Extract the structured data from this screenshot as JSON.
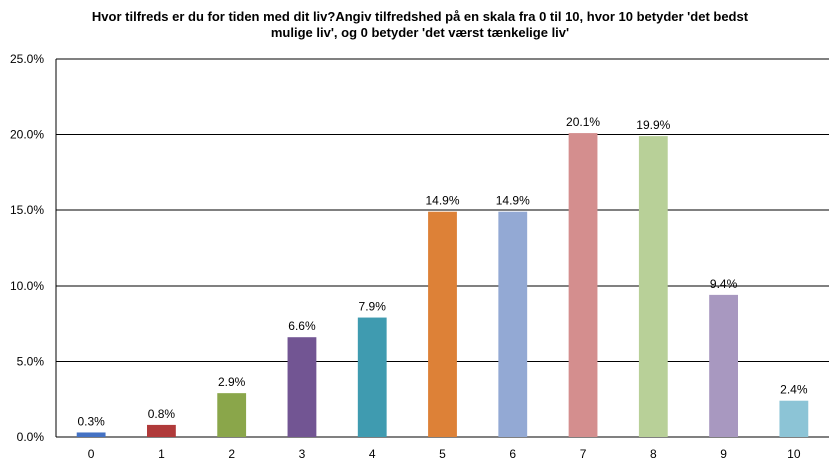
{
  "chart_data": {
    "type": "bar",
    "title_line1": "Hvor tilfreds er du for tiden med dit liv?Angiv tilfredshed på en skala fra 0 til 10, hvor 10 betyder 'det bedst",
    "title_line2": "mulige liv', og 0 betyder 'det værst tænkelige liv'",
    "categories": [
      "0",
      "1",
      "2",
      "3",
      "4",
      "5",
      "6",
      "7",
      "8",
      "9",
      "10"
    ],
    "values": [
      0.3,
      0.8,
      2.9,
      6.6,
      7.9,
      14.9,
      14.9,
      20.1,
      19.9,
      9.4,
      2.4
    ],
    "value_labels": [
      "0.3%",
      "0.8%",
      "2.9%",
      "6.6%",
      "7.9%",
      "14.9%",
      "14.9%",
      "20.1%",
      "19.9%",
      "9.4%",
      "2.4%"
    ],
    "colors": [
      "#4472c4",
      "#b03a3a",
      "#8aa64a",
      "#725593",
      "#3f9bb0",
      "#dd8137",
      "#93a9d4",
      "#d48e8e",
      "#b8d098",
      "#a898c0",
      "#8cc4d6"
    ],
    "ylim": [
      0,
      25
    ],
    "yticks": [
      0,
      5,
      10,
      15,
      20,
      25
    ],
    "ytick_labels": [
      "0.0%",
      "5.0%",
      "10.0%",
      "15.0%",
      "20.0%",
      "25.0%"
    ],
    "grid": true,
    "legend": false,
    "xlabel": "",
    "ylabel": ""
  }
}
